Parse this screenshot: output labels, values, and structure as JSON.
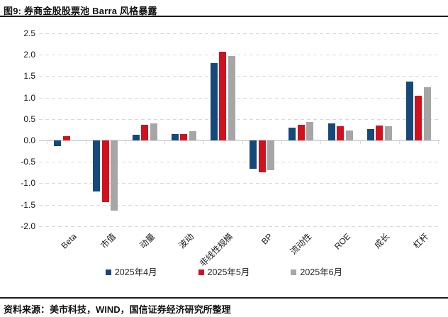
{
  "page": {
    "title": "图9: 券商金股股票池 Barra 风格暴露",
    "source": "资料来源：美市科技，WIND，国信证券经济研究所整理"
  },
  "chart_data": {
    "type": "bar",
    "title": "券商金股股票池 Barra 风格暴露",
    "categories": [
      "Beta",
      "市值",
      "动量",
      "波动",
      "非线性规模",
      "BP",
      "流动性",
      "ROE",
      "成长",
      "杠杆"
    ],
    "series": [
      {
        "name": "2025年4月",
        "color": "#14497A",
        "values": [
          -0.13,
          -1.2,
          0.13,
          0.15,
          1.8,
          -0.67,
          0.3,
          0.39,
          0.26,
          1.38
        ]
      },
      {
        "name": "2025年5月",
        "color": "#D0121F",
        "values": [
          0.1,
          -1.44,
          0.37,
          0.15,
          2.07,
          -0.74,
          0.36,
          0.33,
          0.35,
          1.04
        ]
      },
      {
        "name": "2025年6月",
        "color": "#A6A6A6",
        "values": [
          0.0,
          -1.64,
          0.4,
          0.22,
          1.97,
          -0.7,
          0.43,
          0.24,
          0.33,
          1.25
        ]
      }
    ],
    "ylim": [
      -2.0,
      2.5
    ],
    "ytick_step": 0.5,
    "ytick_labels": [
      "2.5",
      "2.0",
      "1.5",
      "1.0",
      "0.5",
      "0.0",
      "-0.5",
      "-1.0",
      "-1.5",
      "-2.0"
    ],
    "grid": "dashed-horizontal",
    "gridline_color": "#D9D9D9",
    "legend_position": "bottom"
  }
}
